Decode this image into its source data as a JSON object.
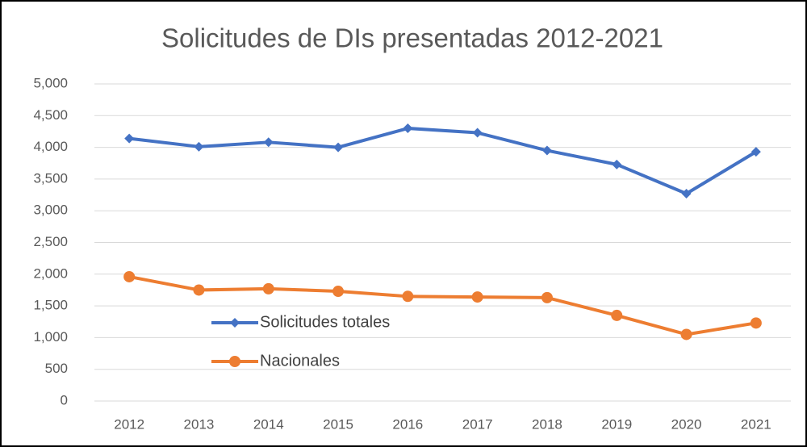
{
  "chart_data": {
    "type": "line",
    "title": "Solicitudes de DIs presentadas 2012-2021",
    "categories": [
      "2012",
      "2013",
      "2014",
      "2015",
      "2016",
      "2017",
      "2018",
      "2019",
      "2020",
      "2021"
    ],
    "series": [
      {
        "name": "Solicitudes totales",
        "color": "#4472c4",
        "marker": "diamond",
        "values": [
          4140,
          4010,
          4080,
          4000,
          4300,
          4230,
          3950,
          3730,
          3270,
          3930
        ]
      },
      {
        "name": "Nacionales",
        "color": "#ed7d31",
        "marker": "circle",
        "values": [
          1960,
          1750,
          1770,
          1730,
          1650,
          1640,
          1630,
          1350,
          1050,
          1230
        ]
      }
    ],
    "ylim": [
      0,
      5000
    ],
    "yticks": [
      0,
      500,
      {
        "value": 1000,
        "label": "1,000"
      },
      {
        "value": 1500,
        "label": "1,500"
      },
      {
        "value": 2000,
        "label": "2,000"
      },
      {
        "value": 2500,
        "label": "2,500"
      },
      {
        "value": 3000,
        "label": "3,000"
      },
      {
        "value": 3500,
        "label": "3,500"
      },
      {
        "value": 4000,
        "label": "4,000"
      },
      {
        "value": 4500,
        "label": "4,500"
      },
      {
        "value": 5000,
        "label": "5,000"
      }
    ],
    "grid": true,
    "legend": "lower-left"
  }
}
